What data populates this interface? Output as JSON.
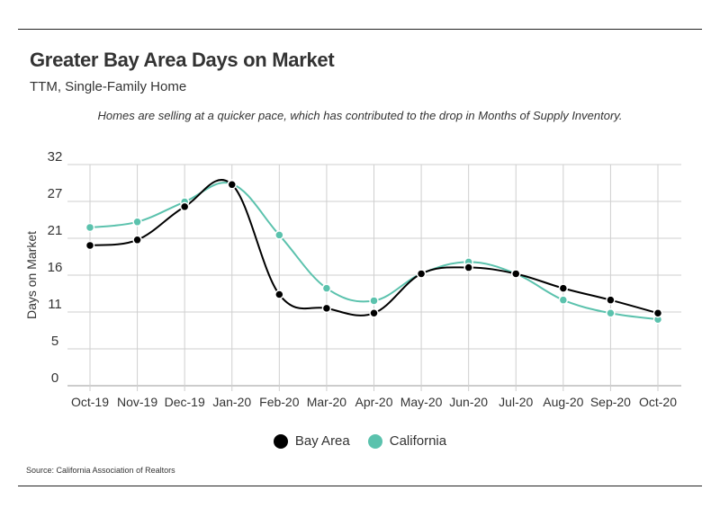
{
  "header": {
    "title": "Greater Bay Area Days on Market",
    "subtitle": "TTM, Single-Family Home",
    "note": "Homes are selling at a quicker pace, which has contributed to the drop in Months of Supply Inventory."
  },
  "footer": {
    "source": "Source:  California Association of Realtors"
  },
  "chart_data": {
    "type": "line",
    "title": "Greater Bay Area Days on Market",
    "subtitle": "TTM, Single-Family Home",
    "xlabel": "",
    "ylabel": "Days on Market",
    "ylim": [
      0,
      32
    ],
    "yticks": [
      0,
      5,
      11,
      16,
      21,
      27,
      32
    ],
    "grid": true,
    "legend_position": "bottom",
    "categories": [
      "Oct-19",
      "Nov-19",
      "Dec-19",
      "Jan-20",
      "Feb-20",
      "Mar-20",
      "Apr-20",
      "May-20",
      "Jun-20",
      "Jul-20",
      "Aug-20",
      "Sep-20",
      "Oct-20"
    ],
    "series": [
      {
        "name": "Bay Area",
        "color": "#000000",
        "values": [
          20.3,
          21.1,
          25.9,
          29.1,
          13.2,
          11.2,
          10.5,
          16.2,
          17.1,
          16.2,
          14.1,
          12.4,
          10.5
        ]
      },
      {
        "name": "California",
        "color": "#5bc2ad",
        "values": [
          22.9,
          23.7,
          26.6,
          29.2,
          21.8,
          14.1,
          12.3,
          16.2,
          17.9,
          16.2,
          12.4,
          10.5,
          9.6
        ]
      }
    ]
  }
}
